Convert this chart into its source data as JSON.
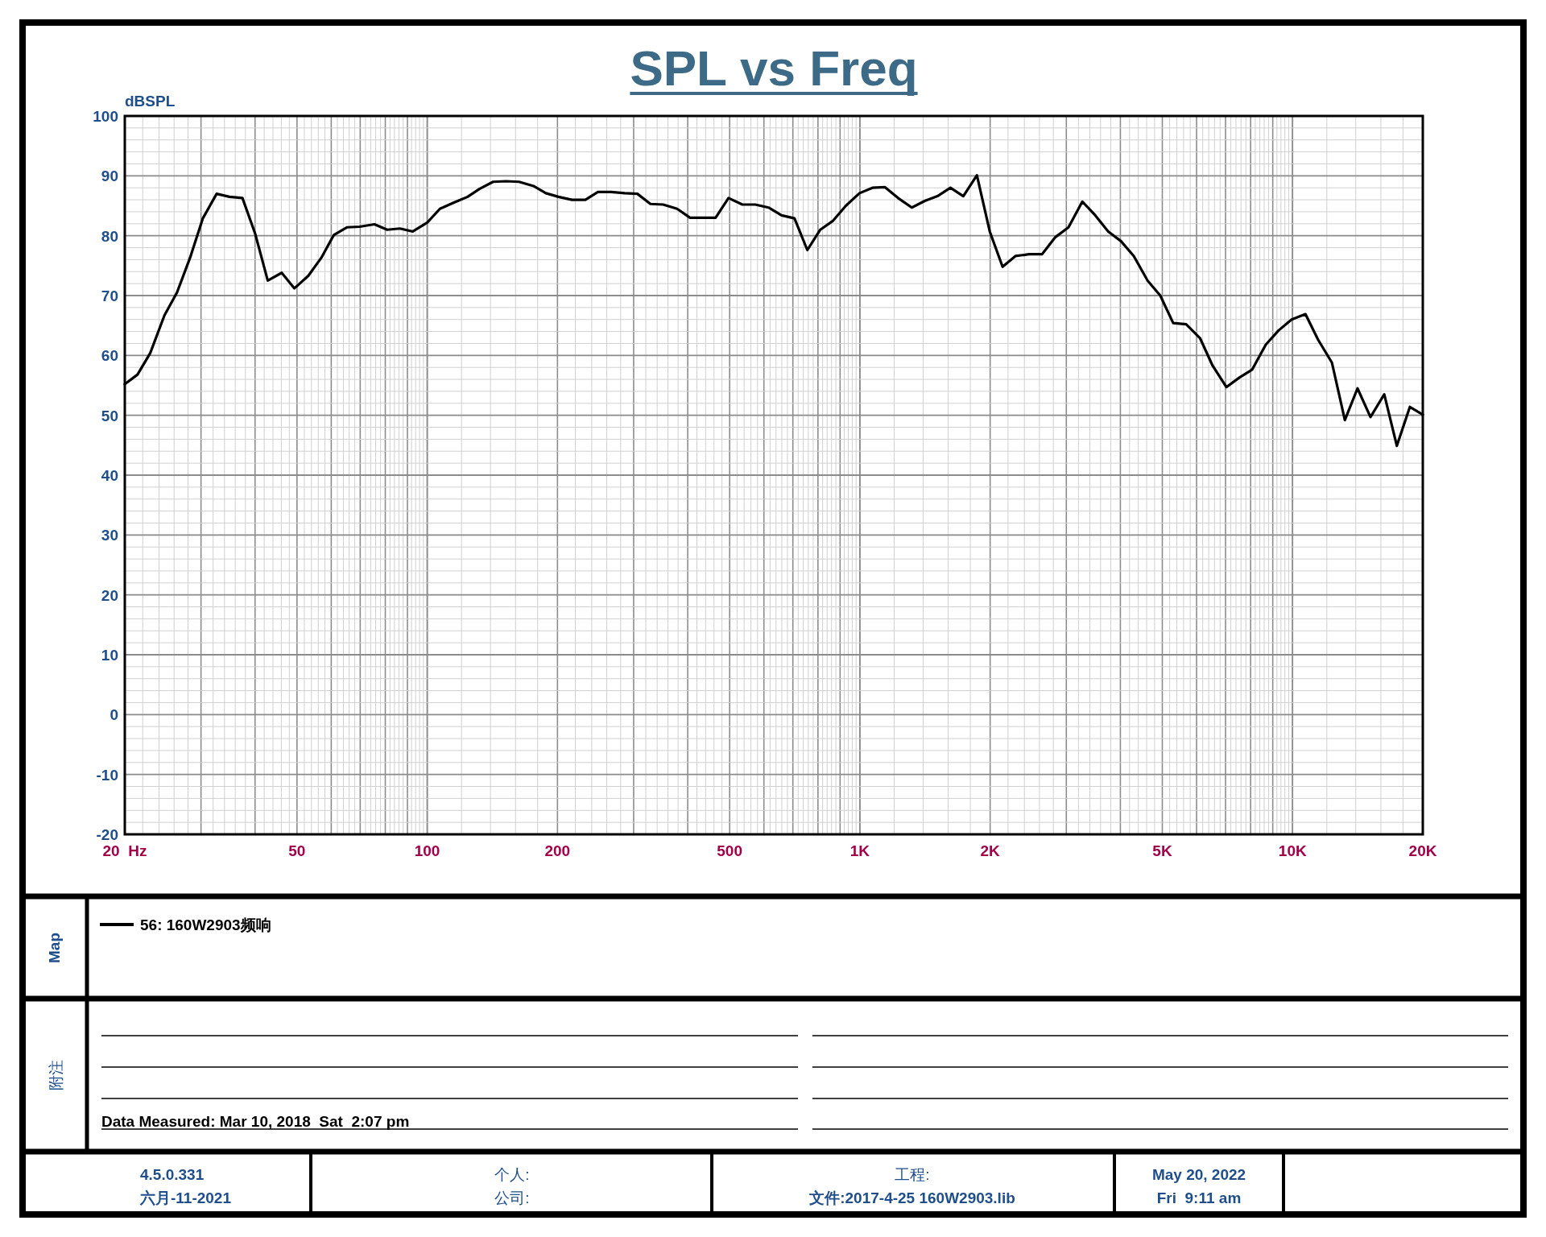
{
  "chart_data": {
    "type": "line",
    "title": "SPL vs Freq",
    "ylabel": "dBSPL",
    "legend_title": "Map",
    "log": "x",
    "grid": true,
    "legend": "bottom",
    "xlim": [
      20,
      20000
    ],
    "ylim": [
      -20,
      100
    ],
    "xticks": [
      {
        "value": 20,
        "label": "20  Hz"
      },
      50,
      100,
      200,
      500,
      {
        "value": 1000,
        "label": "1K"
      },
      {
        "value": 2000,
        "label": "2K"
      },
      {
        "value": 5000,
        "label": "5K"
      },
      {
        "value": 10000,
        "label": "10K"
      },
      {
        "value": 20000,
        "label": "20K"
      }
    ],
    "yticks": [
      -20,
      -10,
      0,
      10,
      20,
      30,
      40,
      50,
      60,
      70,
      80,
      90,
      100
    ],
    "series": [
      {
        "name": "56: 160W2903频响",
        "color": "#000000",
        "x": [
          20,
          21.4,
          22.9,
          24.7,
          26.4,
          28.3,
          30.3,
          32.6,
          34.9,
          37.4,
          40,
          42.8,
          46.1,
          49.3,
          53.1,
          56.9,
          60.8,
          65.2,
          69.8,
          75.5,
          80.8,
          86.5,
          92.6,
          100,
          107,
          115,
          124,
          132,
          142,
          152,
          163,
          176,
          188,
          201,
          216,
          232,
          248,
          266,
          286,
          306,
          328,
          351,
          378,
          405,
          434,
          464,
          497,
          535,
          573,
          615,
          659,
          706,
          756,
          810,
          867,
          928,
          998,
          1069,
          1143,
          1225,
          1318,
          1412,
          1511,
          1619,
          1734,
          1864,
          1996,
          2137,
          2288,
          2461,
          2636,
          2824,
          3035,
          3267,
          3500,
          3749,
          4011,
          4296,
          4624,
          4946,
          5298,
          5675,
          6110,
          6533,
          7031,
          7534,
          8059,
          8671,
          9290,
          9952,
          10710,
          11460,
          12330,
          13210,
          14130,
          15140,
          16290,
          17420,
          18670,
          20000
        ],
        "values": [
          55.2,
          56.8,
          60.4,
          66.7,
          70.5,
          76.3,
          82.9,
          87.0,
          86.5,
          86.3,
          80.4,
          72.5,
          73.8,
          71.2,
          73.3,
          76.3,
          80.1,
          81.4,
          81.5,
          81.9,
          81.0,
          81.2,
          80.7,
          82.2,
          84.5,
          85.5,
          86.5,
          87.8,
          89.0,
          89.1,
          89.0,
          88.3,
          87.1,
          86.5,
          86.0,
          86.0,
          87.3,
          87.3,
          87.1,
          87.0,
          85.3,
          85.2,
          84.5,
          83.0,
          83.0,
          83.0,
          86.3,
          85.2,
          85.2,
          84.7,
          83.4,
          82.9,
          77.6,
          81.0,
          82.5,
          85.0,
          87.1,
          88.0,
          88.1,
          86.3,
          84.7,
          85.8,
          86.6,
          88.0,
          86.6,
          90.1,
          80.7,
          74.8,
          76.6,
          76.9,
          76.9,
          79.7,
          81.4,
          85.7,
          83.4,
          80.7,
          79.1,
          76.6,
          72.5,
          70.0,
          65.4,
          65.2,
          62.9,
          58.3,
          54.7,
          56.3,
          57.6,
          61.8,
          64.2,
          66.0,
          66.9,
          62.6,
          58.8,
          49.2,
          54.5,
          49.7,
          53.5,
          44.9,
          51.4,
          50.1
        ]
      }
    ],
    "annotations": [
      "附注",
      "Data Measured: Mar 10, 2018  Sat  2:07 pm",
      "4.5.0.331",
      "六月-11-2021",
      "个人:",
      "公司:",
      "工程:",
      "文件:2017-4-25 160W2903.lib",
      "May 20, 2022",
      "Fri  9:11 am"
    ]
  }
}
